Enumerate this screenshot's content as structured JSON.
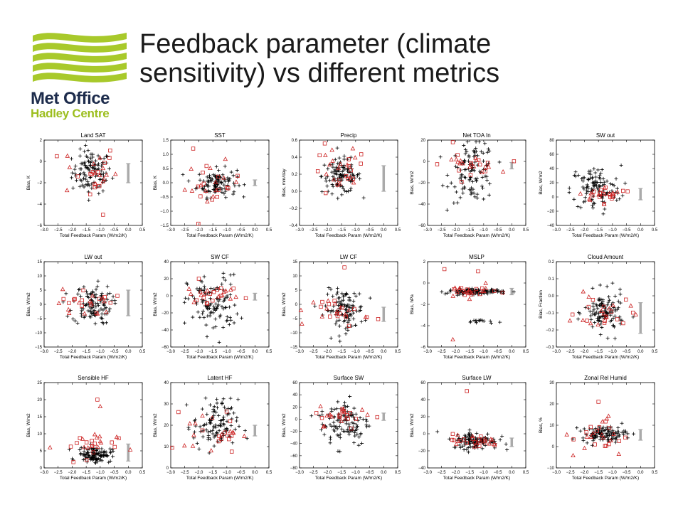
{
  "title": "Feedback parameter (climate\nsensitivity) vs different metrics",
  "brand": {
    "name": "Met Office",
    "subname": "Hadley Centre",
    "logo_color": "#a8c92b",
    "name_color": "#1d2c4c"
  },
  "colors": {
    "ensemble_marker": "#000000",
    "cmip_marker": "#cc2222",
    "range_bar": "#aaaaaa"
  },
  "chart_data": [
    {
      "type": "scatter",
      "title": "Land SAT",
      "xlabel": "Total Feedback Param (W/m2/K)",
      "ylabel": "Bias, K",
      "xlim": [
        -3.0,
        0.5
      ],
      "ylim": [
        -6,
        2
      ],
      "yticks": [
        -6,
        -4,
        -2,
        0,
        2
      ],
      "ytick_labels": [
        "-6",
        "-4",
        "-2",
        "0",
        "2"
      ],
      "cluster": {
        "x": -1.3,
        "y": -1.0,
        "sx": 0.35,
        "sy": 1.0
      },
      "cmip": {
        "x": -1.4,
        "y": -0.9,
        "sx": 0.5,
        "sy": 1.3
      },
      "outliers": [
        [
          -0.9,
          -5.0
        ]
      ],
      "range_bar": [
        -2.0,
        -0.2
      ]
    },
    {
      "type": "scatter",
      "title": "SST",
      "xlabel": "Total Feedback Param (W/m2/K)",
      "ylabel": "Bias, K",
      "xlim": [
        -3.0,
        0.5
      ],
      "ylim": [
        -1.5,
        1.5
      ],
      "yticks": [
        -1.5,
        -1.0,
        -0.5,
        0.0,
        0.5,
        1.0,
        1.5
      ],
      "ytick_labels": [
        "-1.5",
        "-1.0",
        "-0.5",
        "0.0",
        "0.5",
        "1.0",
        "1.5"
      ],
      "cluster": {
        "x": -1.35,
        "y": 0.0,
        "sx": 0.35,
        "sy": 0.25
      },
      "cmip": {
        "x": -1.5,
        "y": -0.1,
        "sx": 0.5,
        "sy": 0.4
      },
      "outliers": [
        [
          -2.2,
          1.2
        ]
      ],
      "range_bar": [
        -0.1,
        0.1
      ]
    },
    {
      "type": "scatter",
      "title": "Precip",
      "xlabel": "Total Feedback Param (W/m2/K)",
      "ylabel": "Bias, mm/day",
      "xlim": [
        -3.0,
        0.5
      ],
      "ylim": [
        -0.4,
        0.6
      ],
      "yticks": [
        -0.4,
        -0.2,
        0.0,
        0.2,
        0.4,
        0.6
      ],
      "ytick_labels": [
        "-0.4",
        "-0.2",
        "0.0",
        "0.2",
        "0.4",
        "0.6"
      ],
      "cluster": {
        "x": -1.5,
        "y": 0.18,
        "sx": 0.35,
        "sy": 0.1
      },
      "cmip": {
        "x": -1.6,
        "y": 0.2,
        "sx": 0.5,
        "sy": 0.15
      },
      "outliers": [
        [
          -2.1,
          0.56
        ],
        [
          -1.1,
          0.5
        ]
      ],
      "range_bar": [
        0.0,
        0.3
      ]
    },
    {
      "type": "scatter",
      "title": "Net TOA In",
      "xlabel": "Total Feedback Param (W/m2/K)",
      "ylabel": "Bias, W/m2",
      "xlim": [
        -3.0,
        0.5
      ],
      "ylim": [
        -60,
        20
      ],
      "yticks": [
        -60,
        -40,
        -20,
        0,
        20
      ],
      "ytick_labels": [
        "-60",
        "-40",
        "-20",
        "0",
        "20"
      ],
      "cluster": {
        "x": -1.4,
        "y": -10,
        "sx": 0.4,
        "sy": 14
      },
      "cmip": {
        "x": -1.5,
        "y": -3,
        "sx": 0.5,
        "sy": 4
      },
      "outliers": [
        [
          -2.1,
          18
        ]
      ],
      "range_bar": [
        -7,
        -1
      ]
    },
    {
      "type": "scatter",
      "title": "SW out",
      "xlabel": "Total Feedback Param (W/m2/K)",
      "ylabel": "Bias, W/m2",
      "xlim": [
        -3.0,
        0.5
      ],
      "ylim": [
        -40,
        80
      ],
      "yticks": [
        -40,
        -20,
        0,
        20,
        40,
        60,
        80
      ],
      "ytick_labels": [
        "-40",
        "-20",
        "0",
        "20",
        "40",
        "60",
        "80"
      ],
      "cluster": {
        "x": -1.6,
        "y": 12,
        "sx": 0.45,
        "sy": 16
      },
      "cmip": {
        "x": -1.2,
        "y": 4,
        "sx": 0.5,
        "sy": 5
      },
      "outliers": [
        [
          -1.3,
          -10
        ]
      ],
      "range_bar": [
        -4,
        12
      ]
    },
    {
      "type": "scatter",
      "title": "LW out",
      "xlabel": "Total Feedback Param (W/m2/K)",
      "ylabel": "Bias, W/m2",
      "xlim": [
        -3.0,
        0.5
      ],
      "ylim": [
        -15,
        15
      ],
      "yticks": [
        -15,
        -10,
        -5,
        0,
        5,
        10,
        15
      ],
      "ytick_labels": [
        "-15",
        "-10",
        "-5",
        "0",
        "5",
        "10",
        "15"
      ],
      "cluster": {
        "x": -1.3,
        "y": 0.0,
        "sx": 0.35,
        "sy": 3.5
      },
      "cmip": {
        "x": -1.5,
        "y": 0.5,
        "sx": 0.5,
        "sy": 2.5
      },
      "outliers": [],
      "range_bar": [
        -4,
        5
      ]
    },
    {
      "type": "scatter",
      "title": "SW CF",
      "xlabel": "Total Feedback Param (W/m2/K)",
      "ylabel": "Bias, W/m2",
      "xlim": [
        -3.0,
        0.5
      ],
      "ylim": [
        -60,
        40
      ],
      "yticks": [
        -60,
        -40,
        -20,
        0,
        20,
        40
      ],
      "ytick_labels": [
        "-60",
        "-40",
        "-20",
        "0",
        "20",
        "40"
      ],
      "cluster": {
        "x": -1.5,
        "y": -10,
        "sx": 0.45,
        "sy": 17
      },
      "cmip": {
        "x": -1.4,
        "y": 2,
        "sx": 0.5,
        "sy": 5
      },
      "outliers": [
        [
          -2.0,
          20
        ]
      ],
      "range_bar": [
        -5,
        3
      ]
    },
    {
      "type": "scatter",
      "title": "LW CF",
      "xlabel": "Total Feedback Param (W/m2/K)",
      "ylabel": "Bias, W/m2",
      "xlim": [
        -3.0,
        0.5
      ],
      "ylim": [
        -15,
        15
      ],
      "yticks": [
        -15,
        -10,
        -5,
        0,
        5,
        10,
        15
      ],
      "ytick_labels": [
        "-15",
        "-10",
        "-5",
        "0",
        "5",
        "10",
        "15"
      ],
      "cluster": {
        "x": -1.4,
        "y": -2,
        "sx": 0.35,
        "sy": 3.5
      },
      "cmip": {
        "x": -1.5,
        "y": -2.5,
        "sx": 0.5,
        "sy": 2.5
      },
      "outliers": [
        [
          -1.4,
          13
        ]
      ],
      "range_bar": [
        -6,
        -1
      ]
    },
    {
      "type": "scatter",
      "title": "MSLP",
      "xlabel": "Total Feedback Param (W/m2/K)",
      "ylabel": "Bias, hPa",
      "xlim": [
        -3.0,
        0.5
      ],
      "ylim": [
        -6,
        2
      ],
      "yticks": [
        -6,
        -4,
        -2,
        0,
        2
      ],
      "ytick_labels": [
        "-6",
        "-4",
        "-2",
        "0",
        "2"
      ],
      "cluster": {
        "x": -1.3,
        "y": -0.8,
        "sx": 0.5,
        "sy": 0.12
      },
      "cluster2": {
        "x": -1.1,
        "y": -3.6,
        "sx": 0.25,
        "sy": 0.1
      },
      "cmip": {
        "x": -1.5,
        "y": -0.8,
        "sx": 0.5,
        "sy": 0.3
      },
      "outliers": [
        [
          -2.4,
          1.3
        ],
        [
          -2.1,
          -5.3
        ],
        [
          -1.2,
          1.1
        ]
      ],
      "range_bar": [
        -1.1,
        -0.5
      ]
    },
    {
      "type": "scatter",
      "title": "Cloud Amount",
      "xlabel": "Total Feedback Param (W/m2/K)",
      "ylabel": "Bias, Fraction",
      "xlim": [
        -3.0,
        0.5
      ],
      "ylim": [
        -0.3,
        0.2
      ],
      "yticks": [
        -0.3,
        -0.2,
        -0.1,
        0.0,
        0.1,
        0.2
      ],
      "ytick_labels": [
        "-0.3",
        "-0.2",
        "-0.1",
        "0.0",
        "0.1",
        "0.2"
      ],
      "cluster": {
        "x": -1.3,
        "y": -0.1,
        "sx": 0.35,
        "sy": 0.06
      },
      "cmip": {
        "x": -1.3,
        "y": -0.1,
        "sx": 0.5,
        "sy": 0.05
      },
      "outliers": [],
      "range_bar": [
        -0.22,
        -0.04
      ]
    },
    {
      "type": "scatter",
      "title": "Sensible HF",
      "xlabel": "Total Feedback Param (W/m2/K)",
      "ylabel": "Bias, W/m2",
      "xlim": [
        -3.0,
        0.5
      ],
      "ylim": [
        0,
        25
      ],
      "yticks": [
        0,
        5,
        10,
        15,
        20,
        25
      ],
      "ytick_labels": [
        "0",
        "5",
        "10",
        "15",
        "20",
        "25"
      ],
      "cluster": {
        "x": -1.2,
        "y": 4,
        "sx": 0.3,
        "sy": 1.1
      },
      "cmip": {
        "x": -1.5,
        "y": 6,
        "sx": 0.55,
        "sy": 2.5
      },
      "outliers": [
        [
          -1.1,
          20
        ],
        [
          -1.0,
          18
        ]
      ],
      "range_bar": [
        2,
        7
      ]
    },
    {
      "type": "scatter",
      "title": "Latent HF",
      "xlabel": "Total Feedback Param (W/m2/K)",
      "ylabel": "Bias, W/m2",
      "xlim": [
        -3.0,
        0.5
      ],
      "ylim": [
        0,
        40
      ],
      "yticks": [
        0,
        10,
        20,
        30,
        40
      ],
      "ytick_labels": [
        "0",
        "10",
        "20",
        "30",
        "40"
      ],
      "cluster": {
        "x": -1.4,
        "y": 20,
        "sx": 0.4,
        "sy": 6
      },
      "cmip": {
        "x": -1.5,
        "y": 17,
        "sx": 0.5,
        "sy": 5
      },
      "outliers": [],
      "range_bar": [
        15,
        20
      ]
    },
    {
      "type": "scatter",
      "title": "Surface SW",
      "xlabel": "Total Feedback Param (W/m2/K)",
      "ylabel": "Bias, W/m2",
      "xlim": [
        -3.0,
        0.5
      ],
      "ylim": [
        -80,
        60
      ],
      "yticks": [
        -80,
        -60,
        -40,
        -20,
        0,
        20,
        40,
        60
      ],
      "ytick_labels": [
        "-80",
        "-60",
        "-40",
        "-20",
        "0",
        "20",
        "40",
        "60"
      ],
      "cluster": {
        "x": -1.4,
        "y": -5,
        "sx": 0.45,
        "sy": 20
      },
      "cmip": {
        "x": -1.3,
        "y": 5,
        "sx": 0.5,
        "sy": 8
      },
      "outliers": [
        [
          -2.4,
          10
        ]
      ],
      "range_bar": [
        -2,
        10
      ]
    },
    {
      "type": "scatter",
      "title": "Surface LW",
      "xlabel": "Total Feedback Param (W/m2/K)",
      "ylabel": "Bias, W/m2",
      "xlim": [
        -3.0,
        0.5
      ],
      "ylim": [
        -40,
        60
      ],
      "yticks": [
        -40,
        -20,
        0,
        20,
        40,
        60
      ],
      "ytick_labels": [
        "-40",
        "-20",
        "0",
        "20",
        "40",
        "60"
      ],
      "cluster": {
        "x": -1.3,
        "y": -8,
        "sx": 0.4,
        "sy": 5
      },
      "cmip": {
        "x": -1.4,
        "y": -9,
        "sx": 0.5,
        "sy": 4
      },
      "outliers": [
        [
          -1.6,
          50
        ]
      ],
      "range_bar": [
        -15,
        -5
      ]
    },
    {
      "type": "scatter",
      "title": "Zonal Rel Humid",
      "xlabel": "Total Feedback Param (W/m2/K)",
      "ylabel": "Bias, %",
      "xlim": [
        -3.0,
        0.5
      ],
      "ylim": [
        -10,
        30
      ],
      "yticks": [
        -10,
        0,
        10,
        20,
        30
      ],
      "ytick_labels": [
        "-10",
        "0",
        "10",
        "20",
        "30"
      ],
      "cluster": {
        "x": -1.3,
        "y": 6,
        "sx": 0.4,
        "sy": 1.8
      },
      "cmip": {
        "x": -1.4,
        "y": 4,
        "sx": 0.5,
        "sy": 5
      },
      "outliers": [
        [
          -1.5,
          21
        ],
        [
          -1.2,
          13
        ]
      ],
      "range_bar": [
        3,
        8
      ]
    }
  ]
}
